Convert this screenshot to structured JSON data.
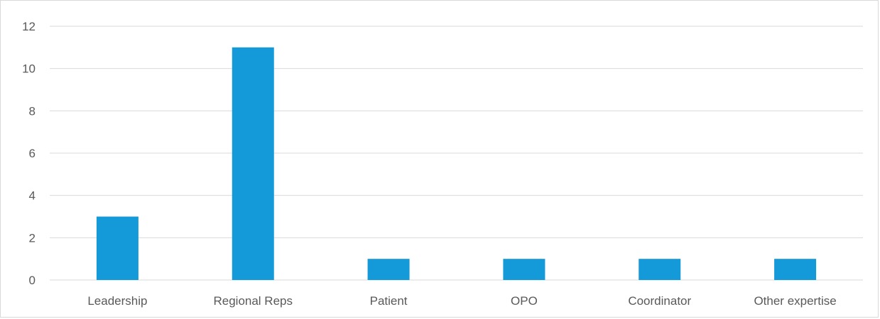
{
  "chart_data": {
    "type": "bar",
    "categories": [
      "Leadership",
      "Regional Reps",
      "Patient",
      "OPO",
      "Coordinator",
      "Other expertise"
    ],
    "values": [
      3,
      11,
      1,
      1,
      1,
      1
    ],
    "title": "",
    "xlabel": "",
    "ylabel": "",
    "ylim": [
      0,
      12
    ],
    "yticks": [
      0,
      2,
      4,
      6,
      8,
      10,
      12
    ],
    "grid": true,
    "legend": "none",
    "bar_color": "#149ad8",
    "grid_color": "#d9d9d9",
    "text_color": "#595959"
  }
}
